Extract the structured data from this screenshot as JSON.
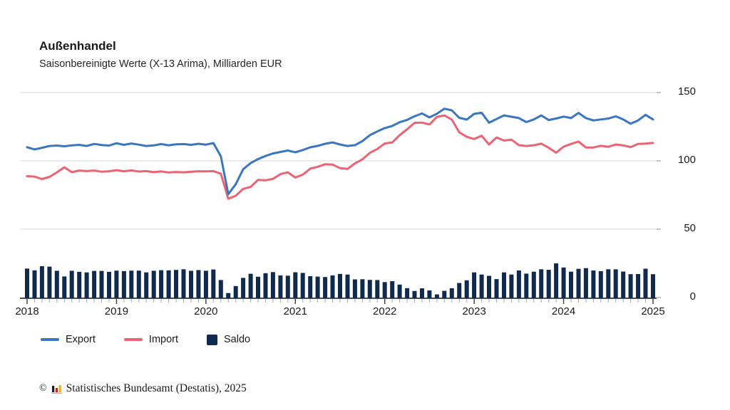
{
  "chart_data": {
    "type": "line+bar",
    "title": "Außenhandel",
    "subtitle": "Saisonbereinigte Werte (X-13 Arima), Milliarden EUR",
    "unit": "Milliarden EUR",
    "x_interval": "monthly",
    "x_start": "2018-01",
    "x_end": "2025-01",
    "year_labels": [
      "2018",
      "2019",
      "2020",
      "2021",
      "2022",
      "2023",
      "2024",
      "2025"
    ],
    "y_ticks": [
      0,
      50,
      100,
      150
    ],
    "ylim": [
      0,
      150
    ],
    "grid": "horizontal",
    "legend_position": "bottom",
    "series": [
      {
        "name": "Export",
        "type": "line",
        "color": "#3b76c0",
        "values": [
          110.0,
          108.4,
          109.6,
          110.9,
          111.2,
          110.7,
          111.3,
          111.7,
          110.9,
          112.4,
          111.6,
          111.2,
          112.9,
          111.7,
          112.7,
          111.9,
          110.9,
          111.3,
          112.3,
          111.4,
          112.1,
          112.3,
          111.7,
          112.5,
          111.9,
          113.0,
          103.4,
          75.6,
          82.9,
          93.9,
          98.4,
          101.3,
          103.6,
          105.4,
          106.5,
          107.6,
          106.3,
          107.9,
          109.9,
          111.0,
          112.5,
          113.5,
          112.0,
          110.9,
          111.5,
          114.5,
          118.8,
          121.5,
          124.0,
          125.5,
          128.3,
          130.0,
          132.6,
          134.7,
          131.8,
          134.5,
          138.2,
          137.0,
          131.5,
          130.2,
          134.4,
          135.2,
          127.9,
          130.6,
          133.3,
          132.3,
          131.3,
          128.4,
          130.3,
          133.3,
          129.9,
          131.0,
          132.4,
          131.3,
          135.1,
          131.3,
          129.6,
          130.3,
          131.0,
          132.6,
          130.3,
          127.2,
          129.6,
          133.7,
          130.3
        ]
      },
      {
        "name": "Import",
        "type": "line",
        "color": "#ec6374",
        "values": [
          88.8,
          88.5,
          86.7,
          88.3,
          91.6,
          95.3,
          91.7,
          92.9,
          92.5,
          92.9,
          92.1,
          92.4,
          93.2,
          92.4,
          93.0,
          92.2,
          92.5,
          91.7,
          92.3,
          91.5,
          91.9,
          91.6,
          92.1,
          92.4,
          92.3,
          92.5,
          90.6,
          72.3,
          74.5,
          79.5,
          81.0,
          86.1,
          85.8,
          86.8,
          90.3,
          91.6,
          87.8,
          89.9,
          94.3,
          95.7,
          97.5,
          97.3,
          94.7,
          94.1,
          98.2,
          101.1,
          105.9,
          108.7,
          112.7,
          113.5,
          118.8,
          123.1,
          127.8,
          128.0,
          126.6,
          132.2,
          133.3,
          130.2,
          120.9,
          117.6,
          116.0,
          118.4,
          112.0,
          117.1,
          114.9,
          115.5,
          111.5,
          110.9,
          111.4,
          112.6,
          109.6,
          106.0,
          110.4,
          112.4,
          114.1,
          109.8,
          109.8,
          111.0,
          110.3,
          112.0,
          111.3,
          110.1,
          112.4,
          112.6,
          113.2
        ]
      },
      {
        "name": "Saldo",
        "type": "bar",
        "color": "#0f2a4c",
        "values": [
          21.2,
          19.9,
          22.9,
          22.6,
          19.6,
          15.4,
          19.6,
          18.8,
          18.4,
          19.5,
          19.5,
          18.8,
          19.7,
          19.3,
          19.7,
          19.7,
          18.4,
          19.6,
          20.0,
          19.9,
          20.2,
          20.7,
          19.6,
          20.1,
          19.6,
          20.5,
          12.8,
          3.3,
          8.4,
          14.4,
          17.4,
          15.2,
          17.8,
          18.6,
          16.2,
          16.0,
          18.5,
          18.0,
          15.6,
          15.3,
          15.0,
          16.2,
          17.3,
          16.8,
          13.3,
          13.4,
          12.9,
          12.8,
          11.3,
          12.0,
          9.5,
          6.9,
          4.8,
          6.7,
          5.2,
          2.3,
          4.9,
          6.8,
          10.6,
          12.6,
          18.4,
          16.8,
          15.9,
          13.5,
          18.4,
          16.8,
          19.8,
          17.5,
          18.9,
          20.7,
          20.3,
          25.0,
          22.0,
          18.9,
          21.0,
          21.5,
          19.8,
          19.3,
          20.7,
          20.6,
          19.0,
          17.1,
          17.2,
          21.1,
          17.1
        ]
      }
    ]
  },
  "legend": {
    "items": [
      {
        "label": "Export",
        "swatch": "line",
        "color": "#3b76c0"
      },
      {
        "label": "Import",
        "swatch": "line",
        "color": "#ec6374"
      },
      {
        "label": "Saldo",
        "swatch": "square",
        "color": "#0f2a4c"
      }
    ]
  },
  "footer": {
    "copyright": "©",
    "source": "Statistisches Bundesamt (Destatis), 2025",
    "logo_colors": [
      "#1a1a1a",
      "#cc2222",
      "#f0b500"
    ]
  },
  "style": {
    "gridline_color": "#d9d9d9",
    "axis_color": "#4d4d4d",
    "minor_tick_color": "#a8a8a8",
    "text_color": "#1a1a1a"
  }
}
